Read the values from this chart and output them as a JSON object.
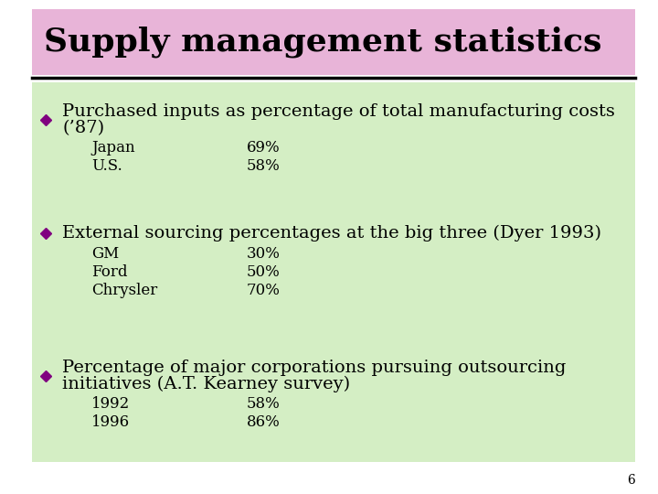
{
  "title": "Supply management statistics",
  "title_bg": "#e8b4d8",
  "content_bg": "#d4eec4",
  "page_bg": "#ffffff",
  "title_fontsize": 26,
  "title_color": "#000000",
  "bullet_color": "#800080",
  "text_color": "#000000",
  "page_number": "6",
  "bullet_font": 14,
  "sub_font": 12,
  "bullets": [
    {
      "lines": [
        "Purchased inputs as percentage of total manufacturing costs",
        "(’87)"
      ],
      "sub_items": [
        [
          "Japan",
          "69%"
        ],
        [
          "U.S.",
          "58%"
        ]
      ]
    },
    {
      "lines": [
        "External sourcing percentages at the big three (Dyer 1993)"
      ],
      "sub_items": [
        [
          "GM",
          "30%"
        ],
        [
          "Ford",
          "50%"
        ],
        [
          "Chrysler",
          "70%"
        ]
      ]
    },
    {
      "lines": [
        "Percentage of major corporations pursuing outsourcing",
        "initiatives (A.T. Kearney survey)"
      ],
      "sub_items": [
        [
          "1992",
          "58%"
        ],
        [
          "1996",
          "86%"
        ]
      ]
    }
  ]
}
